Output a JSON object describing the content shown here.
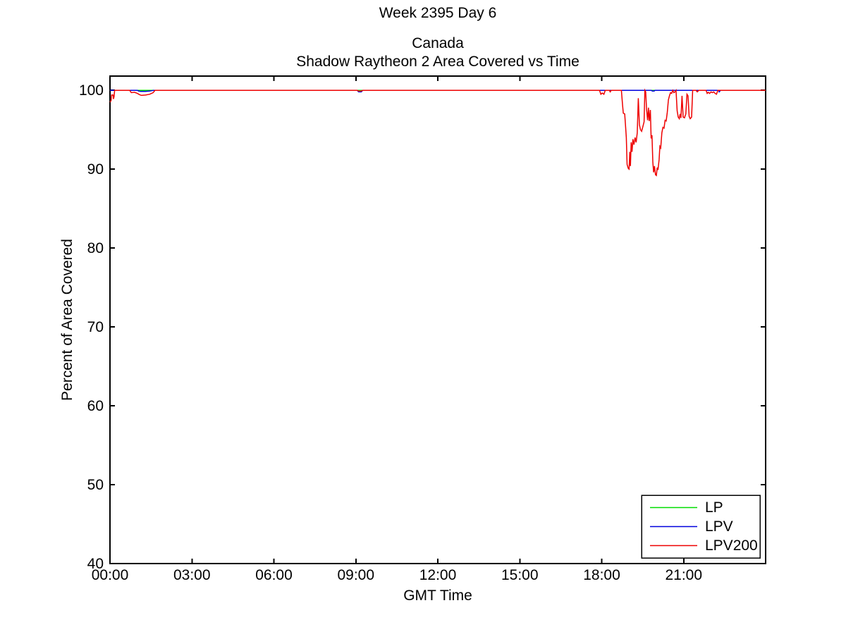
{
  "figure": {
    "background": "#ffffff",
    "suptitle": "Week 2395 Day 6"
  },
  "chart_data": {
    "type": "line",
    "suptitle": "Week 2395 Day 6",
    "title_line1": "Canada",
    "title_line2": "Shadow Raytheon 2 Area Covered vs Time",
    "xlabel": "GMT Time",
    "ylabel": "Percent of Area Covered",
    "xlim_hours": [
      0,
      24
    ],
    "ylim": [
      40,
      101.8
    ],
    "grid": false,
    "axis_color": "#000000",
    "legend_position": "lower-right",
    "x_ticks": [
      {
        "hour": 0,
        "label": "00:00"
      },
      {
        "hour": 3,
        "label": "03:00"
      },
      {
        "hour": 6,
        "label": "06:00"
      },
      {
        "hour": 9,
        "label": "09:00"
      },
      {
        "hour": 12,
        "label": "12:00"
      },
      {
        "hour": 15,
        "label": "15:00"
      },
      {
        "hour": 18,
        "label": "18:00"
      },
      {
        "hour": 21,
        "label": "21:00"
      }
    ],
    "y_ticks": [
      40,
      50,
      60,
      70,
      80,
      90,
      100
    ],
    "series": [
      {
        "name": "LP",
        "color": "#00dd00",
        "points": [
          [
            0,
            100
          ],
          [
            24,
            100
          ]
        ]
      },
      {
        "name": "LPV",
        "color": "#0000dd",
        "points": [
          [
            0,
            100
          ],
          [
            1.0,
            100
          ],
          [
            1.05,
            99.9
          ],
          [
            1.12,
            99.85
          ],
          [
            1.3,
            99.85
          ],
          [
            1.45,
            99.9
          ],
          [
            1.6,
            100
          ],
          [
            9.05,
            100
          ],
          [
            9.1,
            99.8
          ],
          [
            9.2,
            99.8
          ],
          [
            9.25,
            100
          ],
          [
            19.82,
            100
          ],
          [
            19.85,
            99.9
          ],
          [
            19.92,
            99.9
          ],
          [
            19.95,
            100
          ],
          [
            22.28,
            100
          ],
          [
            22.3,
            99.8
          ],
          [
            22.35,
            100
          ],
          [
            24,
            100
          ]
        ]
      },
      {
        "name": "LPV200",
        "color": "#ee0000",
        "points": [
          [
            0,
            98.5
          ],
          [
            0.04,
            98.7
          ],
          [
            0.06,
            99.4
          ],
          [
            0.11,
            99.4
          ],
          [
            0.13,
            98.9
          ],
          [
            0.15,
            99.2
          ],
          [
            0.17,
            100
          ],
          [
            0.72,
            100
          ],
          [
            0.78,
            99.7
          ],
          [
            0.9,
            99.75
          ],
          [
            1.0,
            99.6
          ],
          [
            1.08,
            99.45
          ],
          [
            1.15,
            99.35
          ],
          [
            1.3,
            99.4
          ],
          [
            1.45,
            99.5
          ],
          [
            1.58,
            99.7
          ],
          [
            1.65,
            100
          ],
          [
            9.05,
            100
          ],
          [
            9.1,
            99.9
          ],
          [
            9.2,
            99.9
          ],
          [
            9.25,
            100
          ],
          [
            17.92,
            100
          ],
          [
            17.97,
            99.5
          ],
          [
            18.02,
            99.65
          ],
          [
            18.08,
            99.5
          ],
          [
            18.13,
            100
          ],
          [
            18.28,
            100
          ],
          [
            18.31,
            99.8
          ],
          [
            18.35,
            100
          ],
          [
            18.72,
            100
          ],
          [
            18.76,
            98.2
          ],
          [
            18.79,
            97.1
          ],
          [
            18.84,
            97.0
          ],
          [
            18.87,
            95.6
          ],
          [
            18.9,
            94.0
          ],
          [
            18.93,
            90.6
          ],
          [
            18.97,
            90.1
          ],
          [
            19.0,
            90.0
          ],
          [
            19.03,
            92.2
          ],
          [
            19.05,
            90.4
          ],
          [
            19.08,
            93.4
          ],
          [
            19.11,
            92.2
          ],
          [
            19.14,
            93.8
          ],
          [
            19.18,
            93.1
          ],
          [
            19.22,
            94.0
          ],
          [
            19.26,
            93.4
          ],
          [
            19.3,
            94.6
          ],
          [
            19.34,
            99.0
          ],
          [
            19.38,
            95.6
          ],
          [
            19.42,
            95.0
          ],
          [
            19.46,
            94.8
          ],
          [
            19.5,
            95.3
          ],
          [
            19.55,
            96.0
          ],
          [
            19.58,
            100
          ],
          [
            19.61,
            99.8
          ],
          [
            19.64,
            97.6
          ],
          [
            19.68,
            96.2
          ],
          [
            19.71,
            97.8
          ],
          [
            19.74,
            96.1
          ],
          [
            19.78,
            97.5
          ],
          [
            19.81,
            93.9
          ],
          [
            19.84,
            94.3
          ],
          [
            19.87,
            90.9
          ],
          [
            19.9,
            89.6
          ],
          [
            19.93,
            90.4
          ],
          [
            19.97,
            89.3
          ],
          [
            20.0,
            89.2
          ],
          [
            20.03,
            90.2
          ],
          [
            20.06,
            89.9
          ],
          [
            20.1,
            91.2
          ],
          [
            20.13,
            92.9
          ],
          [
            20.16,
            92.7
          ],
          [
            20.2,
            94.6
          ],
          [
            20.24,
            95.3
          ],
          [
            20.28,
            95.2
          ],
          [
            20.32,
            96.2
          ],
          [
            20.36,
            96.1
          ],
          [
            20.4,
            97.2
          ],
          [
            20.44,
            98.8
          ],
          [
            20.48,
            99.3
          ],
          [
            20.52,
            99.7
          ],
          [
            20.56,
            99.6
          ],
          [
            20.6,
            100
          ],
          [
            20.64,
            99.7
          ],
          [
            20.68,
            99.8
          ],
          [
            20.72,
            100
          ],
          [
            20.76,
            97.4
          ],
          [
            20.8,
            96.6
          ],
          [
            20.84,
            96.4
          ],
          [
            20.87,
            97.0
          ],
          [
            20.9,
            96.5
          ],
          [
            20.94,
            99.3
          ],
          [
            20.98,
            96.6
          ],
          [
            21.03,
            96.5
          ],
          [
            21.08,
            97.0
          ],
          [
            21.12,
            99.5
          ],
          [
            21.16,
            99.3
          ],
          [
            21.2,
            96.7
          ],
          [
            21.24,
            96.4
          ],
          [
            21.29,
            96.6
          ],
          [
            21.33,
            100
          ],
          [
            21.45,
            100
          ],
          [
            21.5,
            99.8
          ],
          [
            21.55,
            100
          ],
          [
            21.82,
            100
          ],
          [
            21.86,
            99.6
          ],
          [
            21.9,
            99.75
          ],
          [
            21.95,
            99.6
          ],
          [
            22.0,
            99.8
          ],
          [
            22.05,
            99.7
          ],
          [
            22.1,
            99.8
          ],
          [
            22.15,
            99.6
          ],
          [
            22.2,
            99.5
          ],
          [
            22.25,
            100
          ],
          [
            24,
            100
          ]
        ]
      }
    ]
  }
}
